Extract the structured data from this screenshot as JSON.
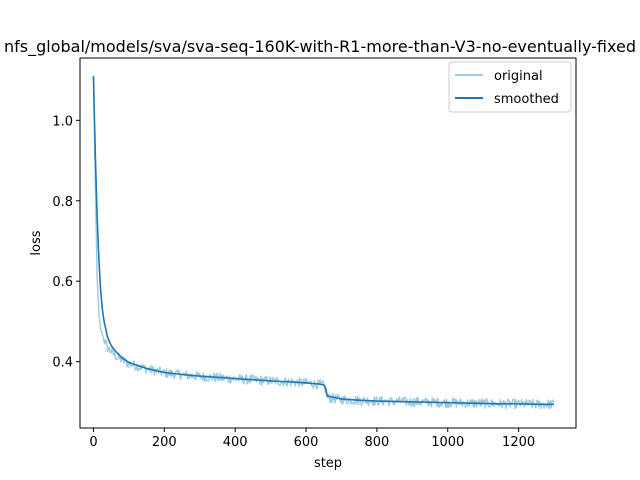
{
  "chart_data": {
    "type": "line",
    "title": "nfs_global/models/sva/sva-seq-160K-with-R1-more-than-V3-no-eventually-fixed",
    "xlabel": "step",
    "ylabel": "loss",
    "xlim": [
      -38,
      1362
    ],
    "ylim": [
      0.235,
      1.155
    ],
    "xticks": [
      0,
      200,
      400,
      600,
      800,
      1000,
      1200
    ],
    "yticks": [
      0.4,
      0.6,
      0.8,
      1.0
    ],
    "xtick_labels": [
      "0",
      "200",
      "400",
      "600",
      "800",
      "1000",
      "1200"
    ],
    "ytick_labels": [
      "0.4",
      "0.6",
      "0.8",
      "1.0"
    ],
    "legend_position": "upper right",
    "series": [
      {
        "name": "original",
        "color": "#9ecae1",
        "style": "noisy",
        "noise_amplitude": 0.012,
        "x": [
          0,
          5,
          10,
          15,
          20,
          25,
          30,
          40,
          50,
          60,
          80,
          100,
          150,
          200,
          250,
          300,
          350,
          400,
          450,
          500,
          550,
          600,
          640,
          650,
          655,
          660,
          700,
          750,
          800,
          850,
          900,
          950,
          1000,
          1050,
          1100,
          1150,
          1200,
          1250,
          1300
        ],
        "y": [
          1.11,
          0.85,
          0.62,
          0.52,
          0.48,
          0.47,
          0.455,
          0.435,
          0.425,
          0.415,
          0.405,
          0.395,
          0.382,
          0.372,
          0.367,
          0.363,
          0.36,
          0.357,
          0.355,
          0.352,
          0.35,
          0.347,
          0.343,
          0.34,
          0.33,
          0.31,
          0.306,
          0.304,
          0.302,
          0.301,
          0.3,
          0.299,
          0.298,
          0.297,
          0.296,
          0.295,
          0.295,
          0.294,
          0.294
        ]
      },
      {
        "name": "smoothed",
        "color": "#1f77b4",
        "style": "smooth",
        "x": [
          0,
          5,
          10,
          15,
          20,
          25,
          30,
          40,
          50,
          60,
          80,
          100,
          150,
          200,
          250,
          300,
          350,
          400,
          450,
          500,
          550,
          600,
          640,
          650,
          655,
          660,
          700,
          750,
          800,
          850,
          900,
          950,
          1000,
          1050,
          1100,
          1150,
          1200,
          1250,
          1300
        ],
        "y": [
          1.11,
          0.92,
          0.77,
          0.66,
          0.58,
          0.53,
          0.5,
          0.46,
          0.44,
          0.428,
          0.41,
          0.398,
          0.383,
          0.373,
          0.368,
          0.364,
          0.361,
          0.358,
          0.355,
          0.352,
          0.35,
          0.347,
          0.344,
          0.342,
          0.335,
          0.315,
          0.307,
          0.304,
          0.302,
          0.301,
          0.3,
          0.299,
          0.298,
          0.297,
          0.296,
          0.295,
          0.295,
          0.294,
          0.294
        ]
      }
    ]
  }
}
